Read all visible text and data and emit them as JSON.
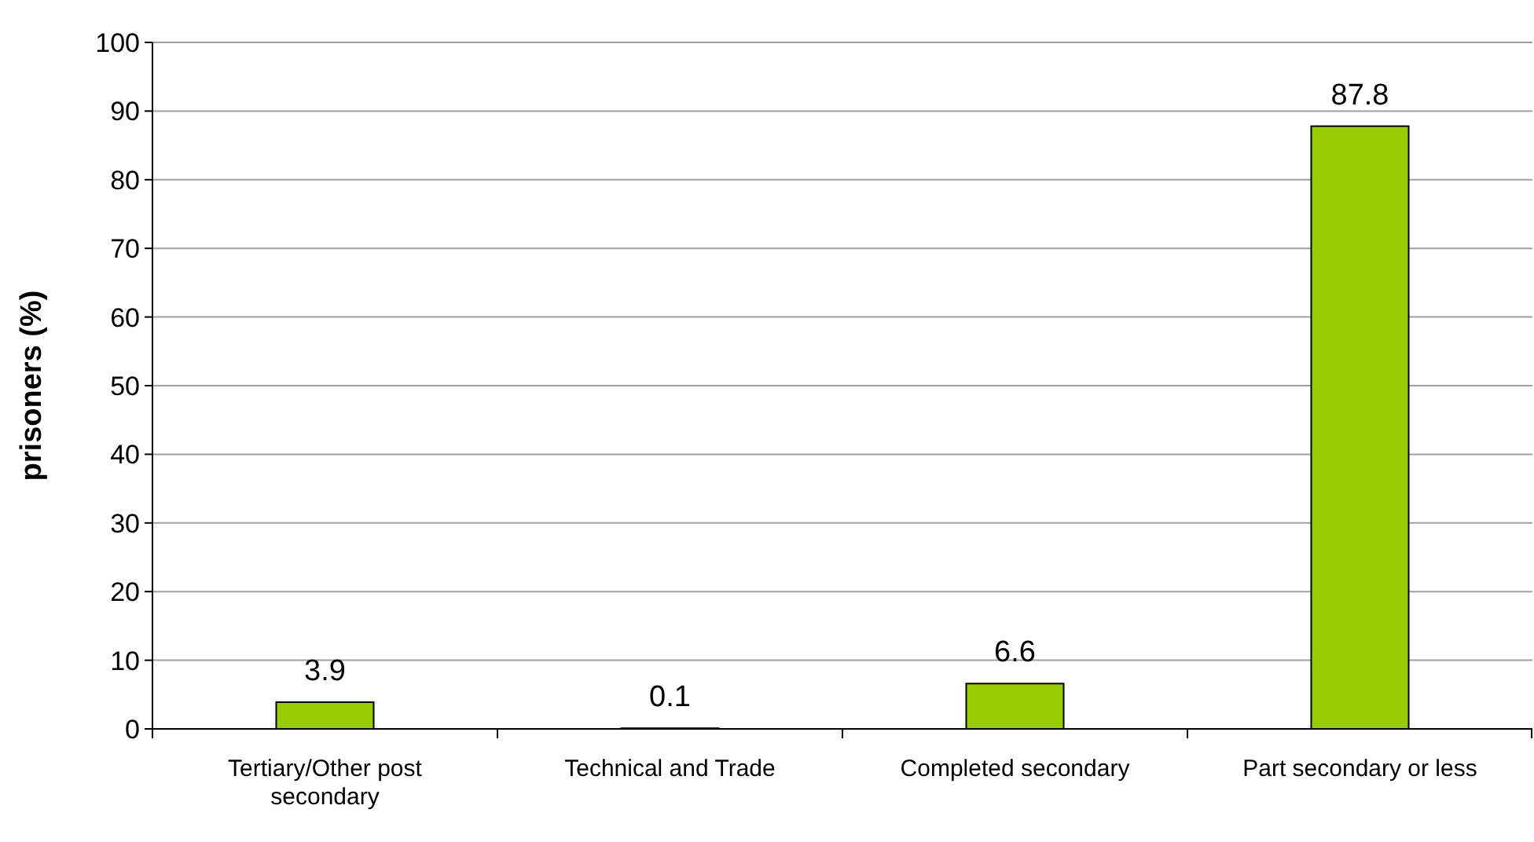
{
  "chart_data": {
    "type": "bar",
    "ylabel": "prisoners (%)",
    "categories": [
      "Tertiary/Other post secondary",
      "Technical and Trade",
      "Completed secondary",
      "Part secondary or less"
    ],
    "values": [
      3.9,
      0.1,
      6.6,
      87.8
    ],
    "color": "#99cc00",
    "ylim": [
      0,
      100
    ],
    "yticks": [
      0,
      10,
      20,
      30,
      40,
      50,
      60,
      70,
      80,
      90,
      100
    ],
    "grid": "y",
    "data_labels": true
  }
}
